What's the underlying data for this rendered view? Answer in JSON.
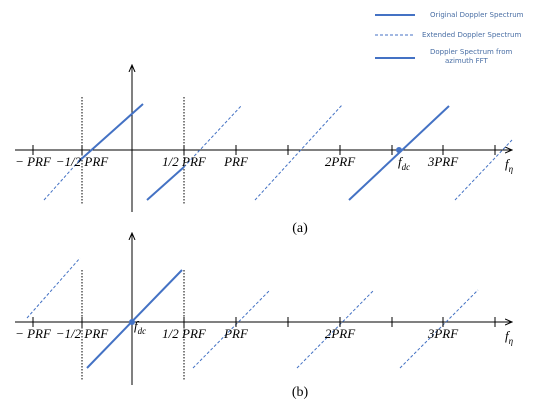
{
  "legend": {
    "entries": [
      "Original Doppler Spectrum",
      "Extended Doppler Spectrum",
      "Doppler Spectrum from",
      "azimuth FFT"
    ]
  },
  "panel_a": {
    "label": "(a)",
    "ticks": [
      "− PRF",
      "−1/2 PRF",
      "1/2 PRF",
      "PRF",
      "2PRF",
      "3PRF"
    ],
    "fdc": {
      "main": "f",
      "sub": "dc"
    },
    "axis": {
      "main": "f",
      "sub": "η"
    }
  },
  "panel_b": {
    "label": "(b)",
    "ticks": [
      "− PRF",
      "−1/2 PRF",
      "1/2 PRF",
      "PRF",
      "2PRF",
      "3PRF"
    ],
    "fdc": {
      "main": "f",
      "sub": "dc"
    },
    "axis": {
      "main": "f",
      "sub": "η"
    }
  }
}
